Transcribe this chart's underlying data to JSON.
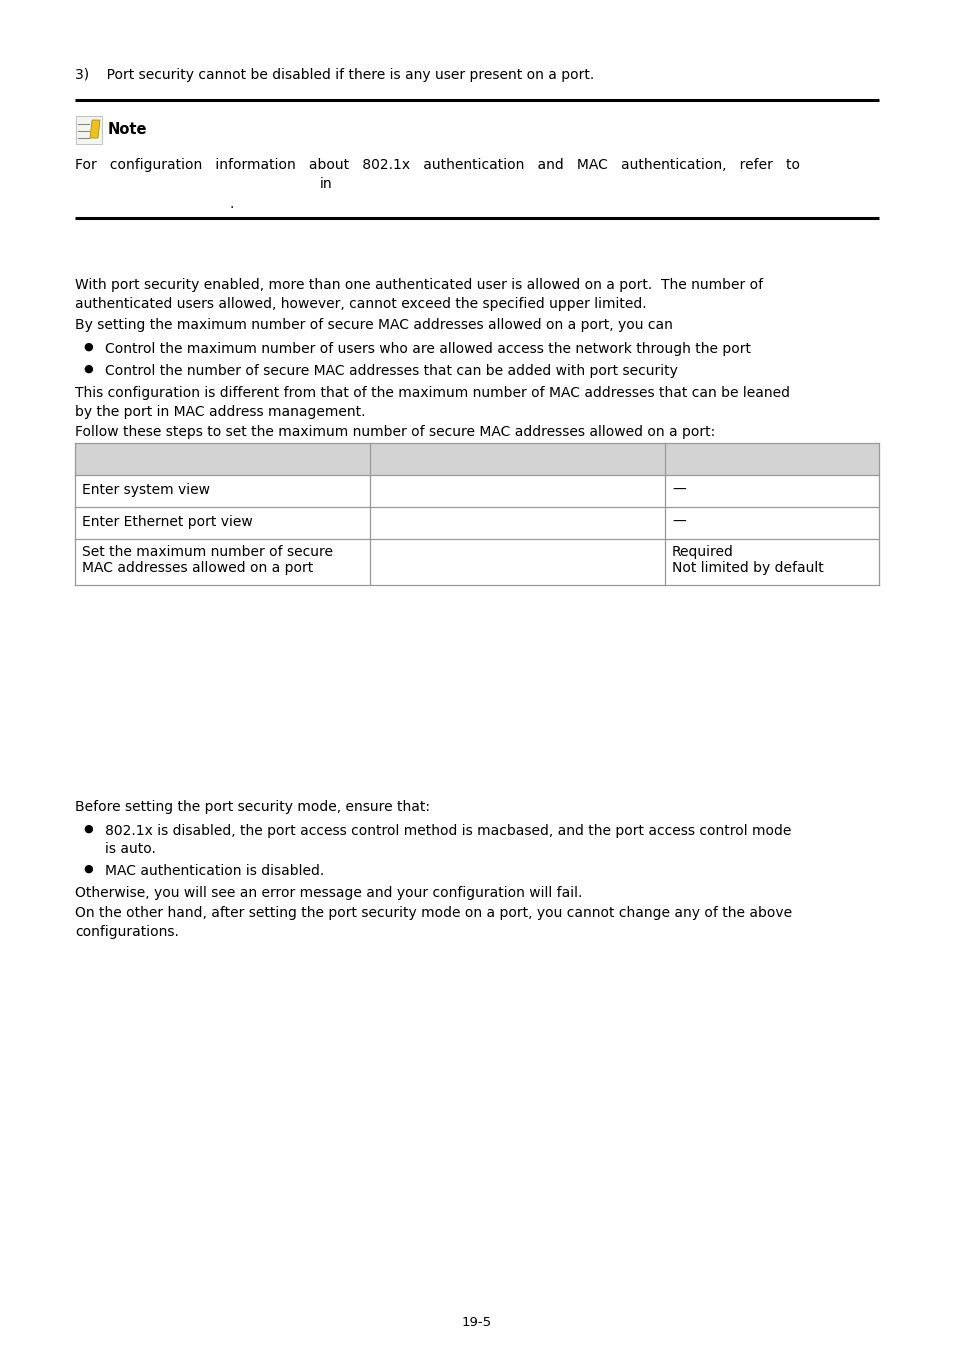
{
  "background_color": "#ffffff",
  "page_number": "19-5",
  "item3_text": "3)    Port security cannot be disabled if there is any user present on a port.",
  "note_label": "Note",
  "note_body1": "For   configuration   information   about   802.1x   authentication   and   MAC   authentication,   refer   to",
  "note_body2": "in",
  "note_body3": ".",
  "para1a": "With port security enabled, more than one authenticated user is allowed on a port.  The number of",
  "para1b": "authenticated users allowed, however, cannot exceed the specified upper limited.",
  "para2": "By setting the maximum number of secure MAC addresses allowed on a port, you can",
  "bullet1": "Control the maximum number of users who are allowed access the network through the port",
  "bullet2": "Control the number of secure MAC addresses that can be added with port security",
  "para3a": "This configuration is different from that of the maximum number of MAC addresses that can be leaned",
  "para3b": "by the port in MAC address management.",
  "para4": "Follow these steps to set the maximum number of secure MAC addresses allowed on a port:",
  "table_row1_col1": "Enter system view",
  "table_row1_col3": "—",
  "table_row2_col1": "Enter Ethernet port view",
  "table_row2_col3": "—",
  "table_row3_col1a": "Set the maximum number of secure",
  "table_row3_col1b": "MAC addresses allowed on a port",
  "table_row3_col3a": "Required",
  "table_row3_col3b": "Not limited by default",
  "para5": "Before setting the port security mode, ensure that:",
  "bullet3a": "802.1x is disabled, the port access control method is macbased, and the port access control mode",
  "bullet3b": "is auto.",
  "bullet4": "MAC authentication is disabled.",
  "para6": "Otherwise, you will see an error message and your configuration will fail.",
  "para7a": "On the other hand, after setting the port security mode on a port, you cannot change any of the above",
  "para7b": "configurations.",
  "table_header_bg": "#d3d3d3",
  "table_line_color": "#999999",
  "text_color": "#000000",
  "fs": 10.0,
  "fs_bold": 10.5
}
